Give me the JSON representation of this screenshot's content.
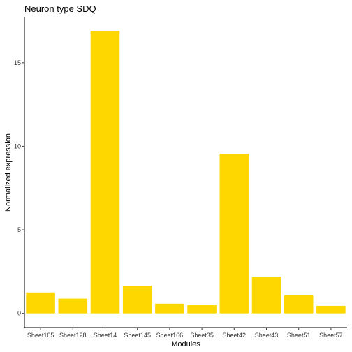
{
  "chart_data": {
    "type": "bar",
    "title": "Neuron type SDQ",
    "xlabel": "Modules",
    "ylabel": "Normalized expression",
    "categories": [
      "Sheet105",
      "Sheet128",
      "Sheet14",
      "Sheet145",
      "Sheet166",
      "Sheet35",
      "Sheet42",
      "Sheet43",
      "Sheet51",
      "Sheet57"
    ],
    "values": [
      1.25,
      0.88,
      16.9,
      1.65,
      0.58,
      0.5,
      9.55,
      2.2,
      1.08,
      0.45
    ],
    "yticks": [
      0,
      5,
      10,
      15
    ],
    "ylim": [
      -0.85,
      17.75
    ],
    "grid": false,
    "bar_color": "#FFD700"
  }
}
